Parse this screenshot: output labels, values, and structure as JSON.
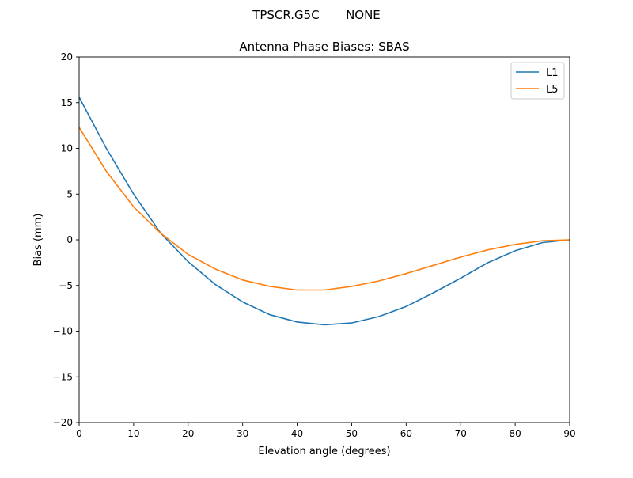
{
  "suptitle": "TPSCR.G5C       NONE",
  "chart_data": {
    "type": "line",
    "title": "Antenna Phase Biases: SBAS",
    "xlabel": "Elevation angle (degrees)",
    "ylabel": "Bias (mm)",
    "xlim": [
      0,
      90
    ],
    "ylim": [
      -20,
      20
    ],
    "xticks": [
      0,
      10,
      20,
      30,
      40,
      50,
      60,
      70,
      80,
      90
    ],
    "yticks": [
      -20,
      -15,
      -10,
      -5,
      0,
      5,
      10,
      15,
      20
    ],
    "ytick_labels": [
      "−20",
      "−15",
      "−10",
      "−5",
      "0",
      "5",
      "10",
      "15",
      "20"
    ],
    "grid": false,
    "legend_position": "top-right",
    "x": [
      0,
      5,
      10,
      15,
      20,
      25,
      30,
      35,
      40,
      45,
      50,
      55,
      60,
      65,
      70,
      75,
      80,
      85,
      90
    ],
    "series": [
      {
        "name": "L1",
        "color": "#1f77b4",
        "values": [
          15.6,
          10.0,
          5.0,
          0.7,
          -2.4,
          -4.9,
          -6.8,
          -8.2,
          -9.0,
          -9.3,
          -9.1,
          -8.4,
          -7.3,
          -5.8,
          -4.2,
          -2.5,
          -1.2,
          -0.3,
          0.0
        ]
      },
      {
        "name": "L5",
        "color": "#ff7f0e",
        "values": [
          12.3,
          7.5,
          3.6,
          0.7,
          -1.6,
          -3.2,
          -4.4,
          -5.1,
          -5.5,
          -5.5,
          -5.1,
          -4.5,
          -3.7,
          -2.8,
          -1.9,
          -1.1,
          -0.5,
          -0.1,
          0.0
        ]
      }
    ]
  }
}
